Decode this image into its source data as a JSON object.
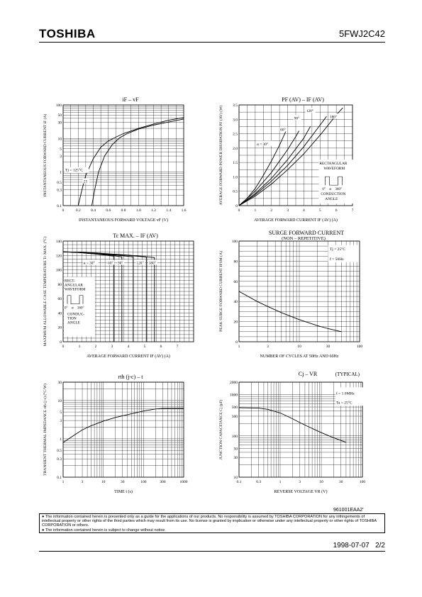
{
  "header": {
    "brand": "TOSHIBA",
    "part_number": "5FWJ2C42"
  },
  "doc_id": "961001EAA2'",
  "disclaimer": [
    "The information contained herein is presented only as a guide for the applications of our products. No responsibility is assumed by TOSHIBA CORPORATION for any infringements of intellectual property or other rights of the third parties which may result from its use. No license is granted by implication or otherwise under any intellectual property or other rights of TOSHIBA CORPORATION or others.",
    "The information contained herein is subject to change without notice."
  ],
  "footer": {
    "date": "1998-07-07",
    "page": "2/2"
  },
  "chart_data": [
    {
      "type": "line",
      "title": "iF – vF",
      "xlabel": "INSTANTANEOUS FORWARD VOLTAGE  vF  (V)",
      "ylabel": "INSTANTANEOUS FORWARD CURRENT  iF  (A)",
      "x_scale": "linear",
      "y_scale": "log",
      "xlim": [
        0,
        1.6
      ],
      "ylim": [
        0.1,
        100
      ],
      "xticks": [
        0,
        0.2,
        0.4,
        0.6,
        0.8,
        1.0,
        1.2,
        1.4,
        1.6
      ],
      "xtick_labels": [
        "0",
        "0.2",
        "0.4",
        "0.6",
        "0.8",
        "1.0",
        "1.2",
        "1.4",
        "1.6"
      ],
      "yticks": [
        0.1,
        0.3,
        0.5,
        1,
        3,
        5,
        10,
        30,
        50,
        100
      ],
      "ytick_labels": [
        "0.1",
        "0.3",
        "0.5",
        "1",
        "3",
        "5",
        "10",
        "30",
        "50",
        "100"
      ],
      "legend": "Tj = 125°C",
      "annotations": [
        {
          "text": "25"
        }
      ],
      "series": [
        {
          "name": "Tj = 125°C",
          "points": [
            [
              0.2,
              0.1
            ],
            [
              0.25,
              0.3
            ],
            [
              0.3,
              0.8
            ],
            [
              0.4,
              2.5
            ],
            [
              0.5,
              5.5
            ],
            [
              0.6,
              8.5
            ],
            [
              0.7,
              11
            ],
            [
              0.8,
              14
            ],
            [
              1.0,
              20
            ],
            [
              1.2,
              27
            ],
            [
              1.4,
              35
            ],
            [
              1.6,
              42
            ]
          ]
        },
        {
          "name": "25",
          "points": [
            [
              0.38,
              0.1
            ],
            [
              0.42,
              0.3
            ],
            [
              0.47,
              1
            ],
            [
              0.55,
              3
            ],
            [
              0.65,
              6.5
            ],
            [
              0.75,
              10.5
            ],
            [
              0.85,
              14
            ],
            [
              1.0,
              19
            ],
            [
              1.2,
              25
            ],
            [
              1.4,
              31
            ],
            [
              1.6,
              38
            ]
          ]
        }
      ]
    },
    {
      "type": "line",
      "title": "PF (AV) – IF (AV)",
      "xlabel": "AVERAGE FORWARD CURRENT  IF (AV)  (A)",
      "ylabel": "AVERAGE FORWARD POWER DISSIPATION  PF (AV)  (W)",
      "xlim": [
        0,
        7
      ],
      "ylim": [
        0,
        3.5
      ],
      "xticks": [
        0,
        1,
        2,
        3,
        4,
        5,
        6,
        7
      ],
      "xtick_labels": [
        "0",
        "1",
        "2",
        "3",
        "4",
        "5",
        "6",
        "7"
      ],
      "yticks": [
        0,
        0.5,
        1.0,
        1.5,
        2.0,
        2.5,
        3.0,
        3.5
      ],
      "ytick_labels": [
        "0",
        "0.5",
        "1.0",
        "1.5",
        "2.0",
        "2.5",
        "3.0",
        "3.5"
      ],
      "annotations": [
        {
          "text": "RECTANGULAR"
        },
        {
          "text": "WAVEFORM"
        },
        {
          "text": "0°"
        },
        {
          "text": "α"
        },
        {
          "text": "360°"
        },
        {
          "text": "CONDUCTION"
        },
        {
          "text": "ANGLE"
        }
      ],
      "series": [
        {
          "name": "α = 30°",
          "points": [
            [
              0,
              0
            ],
            [
              0.5,
              0.25
            ],
            [
              1,
              0.6
            ],
            [
              1.5,
              1.05
            ],
            [
              2,
              1.55
            ],
            [
              2.5,
              2.1
            ],
            [
              2.9,
              2.6
            ]
          ]
        },
        {
          "name": "60°",
          "points": [
            [
              0,
              0
            ],
            [
              1,
              0.5
            ],
            [
              2,
              1.15
            ],
            [
              3,
              1.95
            ],
            [
              3.5,
              2.4
            ],
            [
              3.7,
              2.6
            ]
          ]
        },
        {
          "name": "90°",
          "points": [
            [
              0,
              0
            ],
            [
              1,
              0.42
            ],
            [
              2,
              0.95
            ],
            [
              3,
              1.6
            ],
            [
              4,
              2.35
            ],
            [
              4.4,
              2.75
            ]
          ]
        },
        {
          "name": "120°",
          "points": [
            [
              0,
              0
            ],
            [
              1,
              0.38
            ],
            [
              2,
              0.85
            ],
            [
              3,
              1.4
            ],
            [
              4,
              2.05
            ],
            [
              5,
              2.8
            ],
            [
              5.4,
              3.1
            ]
          ]
        },
        {
          "name": "180°",
          "points": [
            [
              0,
              0
            ],
            [
              1,
              0.33
            ],
            [
              2,
              0.75
            ],
            [
              3,
              1.25
            ],
            [
              4,
              1.8
            ],
            [
              5,
              2.45
            ],
            [
              6,
              3.15
            ],
            [
              6.4,
              3.4
            ]
          ]
        }
      ]
    },
    {
      "type": "line",
      "title": "Tc MAX. – IF (AV)",
      "xlabel": "AVERAGE FORWARD CURRENT  IF (AV)  (A)",
      "ylabel": "MAXIMUM ALLOWABLE CASE TEMPERATURE  Tc MAX.  (°C)",
      "xlim": [
        0,
        8
      ],
      "ylim": [
        0,
        140
      ],
      "xticks": [
        0,
        1,
        2,
        3,
        4,
        5,
        6,
        7
      ],
      "xtick_labels": [
        "0",
        "1",
        "2",
        "3",
        "4",
        "5",
        "6",
        "7"
      ],
      "yticks": [
        0,
        20,
        40,
        60,
        80,
        100,
        120,
        140
      ],
      "ytick_labels": [
        "0",
        "20",
        "40",
        "60",
        "80",
        "100",
        "120",
        "140"
      ],
      "annotations": [
        {
          "text": "RECT-"
        },
        {
          "text": "ANGULAR"
        },
        {
          "text": "WAVEFORM"
        },
        {
          "text": "0°"
        },
        {
          "text": "α"
        },
        {
          "text": "360°"
        },
        {
          "text": "CONDUC-"
        },
        {
          "text": "TION"
        },
        {
          "text": "ANGLE"
        }
      ],
      "series": [
        {
          "name": "α = 30°",
          "points": [
            [
              0,
              125
            ],
            [
              1,
              124
            ],
            [
              2,
              122
            ],
            [
              3.1,
              119
            ],
            [
              3.1,
              0
            ]
          ]
        },
        {
          "name": "60°",
          "points": [
            [
              0,
              125
            ],
            [
              1,
              124
            ],
            [
              2,
              122
            ],
            [
              3,
              120
            ],
            [
              3.6,
              118
            ],
            [
              3.6,
              0
            ]
          ]
        },
        {
          "name": "90°",
          "points": [
            [
              0,
              125
            ],
            [
              1,
              124
            ],
            [
              2,
              122.5
            ],
            [
              3,
              121
            ],
            [
              4.3,
              118
            ],
            [
              4.3,
              0
            ]
          ]
        },
        {
          "name": "120°",
          "points": [
            [
              0,
              125
            ],
            [
              1,
              124.5
            ],
            [
              2,
              123
            ],
            [
              3,
              121.5
            ],
            [
              4,
              120
            ],
            [
              5,
              118
            ],
            [
              5.1,
              117.5
            ],
            [
              5.1,
              0
            ]
          ]
        },
        {
          "name": "180°",
          "points": [
            [
              0,
              125
            ],
            [
              1,
              124.5
            ],
            [
              2,
              123.5
            ],
            [
              3,
              122
            ],
            [
              4,
              120.5
            ],
            [
              5,
              118.5
            ],
            [
              5.6,
              117
            ],
            [
              5.6,
              0
            ]
          ]
        }
      ]
    },
    {
      "type": "line",
      "title": "SURGE FORWARD CURRENT",
      "subtitle": "(NON – REPETITIVE)",
      "xlabel": "NUMBER OF CYCLES AT 50Hz AND 60Hz",
      "ylabel": "PEAK SURGE FORWARD CURRENT  IFSM  (A)",
      "x_scale": "log",
      "xlim": [
        1,
        100
      ],
      "ylim": [
        0,
        100
      ],
      "xticks": [
        1,
        3,
        10,
        30,
        100
      ],
      "xtick_labels": [
        "1",
        "3",
        "10",
        "30",
        "100"
      ],
      "yticks": [
        0,
        20,
        40,
        60,
        80,
        100
      ],
      "ytick_labels": [
        "0",
        "20",
        "40",
        "60",
        "80",
        "100"
      ],
      "annotations": [
        {
          "text": "Tj = 25°C"
        },
        {
          "text": "f = 50Hz"
        }
      ],
      "series": [
        {
          "name": "IFSM",
          "points": [
            [
              1,
              50
            ],
            [
              2,
              40
            ],
            [
              3,
              35
            ],
            [
              5,
              29
            ],
            [
              10,
              22
            ],
            [
              20,
              16
            ],
            [
              30,
              13
            ],
            [
              50,
              10
            ]
          ]
        }
      ]
    },
    {
      "type": "line",
      "title": "rth (j-c) – t",
      "xlabel": "TIME  t  (s)",
      "ylabel": "TRANSIENT THERMAL IMPEDANCE  rth (j-c)  (°C/W)",
      "x_scale": "log",
      "y_scale": "log",
      "xlim": [
        1,
        1000
      ],
      "ylim": [
        0.1,
        30
      ],
      "xticks": [
        1,
        3,
        10,
        30,
        100,
        300,
        1000
      ],
      "xtick_labels": [
        "1",
        "3",
        "10",
        "30",
        "100",
        "300",
        "1000"
      ],
      "yticks": [
        0.1,
        0.3,
        0.5,
        1,
        3,
        5,
        10,
        30
      ],
      "ytick_labels": [
        "0.1",
        "0.3",
        "0.5",
        "1",
        "3",
        "5",
        "10",
        "30"
      ],
      "series": [
        {
          "name": "rth",
          "points": [
            [
              1,
              0.8
            ],
            [
              2,
              1.3
            ],
            [
              3,
              1.7
            ],
            [
              5,
              2.2
            ],
            [
              10,
              2.9
            ],
            [
              20,
              3.6
            ],
            [
              50,
              4.5
            ],
            [
              100,
              5.3
            ],
            [
              200,
              6.0
            ],
            [
              300,
              6.2
            ],
            [
              1000,
              6.2
            ]
          ]
        }
      ]
    },
    {
      "type": "line",
      "title": "Cj – VR",
      "subtitle": "(TYPICAL)",
      "xlabel": "REVERSE VOLTAGE  VR  (V)",
      "ylabel": "JUNCTION CAPACITANCE  Cj  (pF)",
      "x_scale": "log",
      "y_scale": "log",
      "xlim": [
        0.1,
        100
      ],
      "ylim": [
        10,
        2000
      ],
      "xticks": [
        0.1,
        0.3,
        1,
        3,
        10,
        30,
        100
      ],
      "xtick_labels": [
        "0.1",
        "0.3",
        "1",
        "3",
        "10",
        "30",
        "100"
      ],
      "yticks": [
        10,
        30,
        50,
        100,
        300,
        500,
        1000,
        2000
      ],
      "ytick_labels": [
        "10",
        "30",
        "50",
        "100",
        "300",
        "500",
        "1000",
        "2000"
      ],
      "annotations": [
        {
          "text": "f = 1.0MHz"
        },
        {
          "text": "Ta = 25°C"
        }
      ],
      "series": [
        {
          "name": "Cj",
          "points": [
            [
              0.1,
              480
            ],
            [
              0.3,
              470
            ],
            [
              0.5,
              440
            ],
            [
              1,
              360
            ],
            [
              2,
              260
            ],
            [
              3,
              210
            ],
            [
              5,
              165
            ],
            [
              10,
              120
            ],
            [
              20,
              90
            ],
            [
              40,
              70
            ]
          ]
        }
      ]
    }
  ]
}
